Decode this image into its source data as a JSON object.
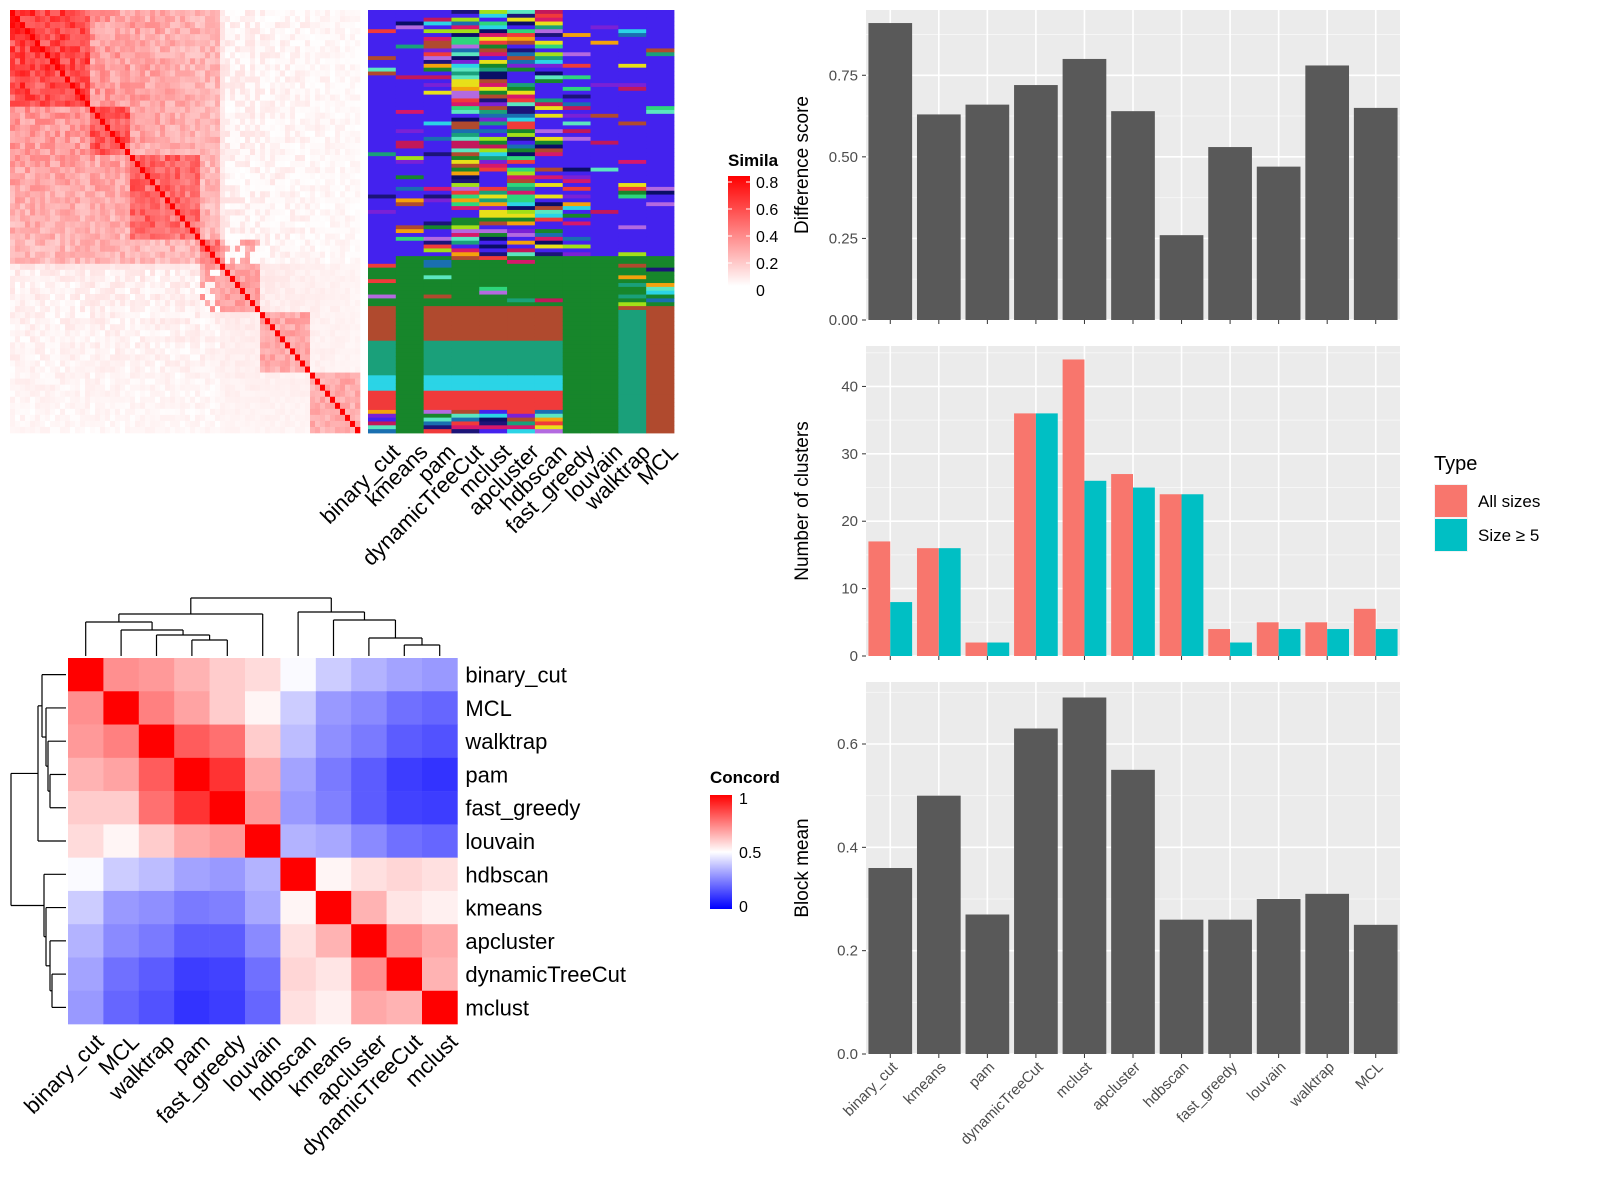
{
  "chart_data": [
    {
      "type": "heatmap",
      "id": "similarity-heatmap",
      "description_note": "",
      "legend": {
        "title": "Simila",
        "ticks": [
          "0.8",
          "0.6",
          "0.4",
          "0.2",
          "0"
        ],
        "colors": [
          "#ffffff",
          "#ff0000"
        ]
      },
      "value_range": [
        0,
        0.8
      ]
    },
    {
      "type": "heatmap",
      "id": "cluster-label-matrix",
      "columns": [
        "binary_cut",
        "kmeans",
        "pam",
        "dynamicTreeCut",
        "mclust",
        "apcluster",
        "hdbscan",
        "fast_greedy",
        "louvain",
        "walktrap",
        "MCL"
      ]
    },
    {
      "type": "heatmap",
      "id": "concordance-heatmap",
      "rows": [
        "binary_cut",
        "MCL",
        "walktrap",
        "pam",
        "fast_greedy",
        "louvain",
        "hdbscan",
        "kmeans",
        "apcluster",
        "dynamicTreeCut",
        "mclust"
      ],
      "columns": [
        "binary_cut",
        "MCL",
        "walktrap",
        "pam",
        "fast_greedy",
        "louvain",
        "hdbscan",
        "kmeans",
        "apcluster",
        "dynamicTreeCut",
        "mclust"
      ],
      "values": [
        [
          1.0,
          0.72,
          0.7,
          0.65,
          0.6,
          0.57,
          0.49,
          0.4,
          0.35,
          0.32,
          0.3
        ],
        [
          0.72,
          1.0,
          0.75,
          0.68,
          0.6,
          0.52,
          0.4,
          0.3,
          0.27,
          0.22,
          0.2
        ],
        [
          0.7,
          0.75,
          1.0,
          0.82,
          0.78,
          0.6,
          0.37,
          0.28,
          0.24,
          0.18,
          0.16
        ],
        [
          0.65,
          0.68,
          0.82,
          1.0,
          0.9,
          0.67,
          0.32,
          0.24,
          0.18,
          0.12,
          0.1
        ],
        [
          0.6,
          0.6,
          0.78,
          0.9,
          1.0,
          0.7,
          0.3,
          0.25,
          0.18,
          0.13,
          0.12
        ],
        [
          0.57,
          0.52,
          0.6,
          0.67,
          0.7,
          1.0,
          0.35,
          0.33,
          0.27,
          0.22,
          0.2
        ],
        [
          0.49,
          0.4,
          0.37,
          0.32,
          0.3,
          0.35,
          1.0,
          0.52,
          0.56,
          0.58,
          0.56
        ],
        [
          0.4,
          0.3,
          0.28,
          0.24,
          0.25,
          0.33,
          0.52,
          1.0,
          0.65,
          0.55,
          0.53
        ],
        [
          0.35,
          0.27,
          0.24,
          0.18,
          0.18,
          0.27,
          0.56,
          0.65,
          1.0,
          0.72,
          0.67
        ],
        [
          0.32,
          0.22,
          0.18,
          0.12,
          0.13,
          0.22,
          0.58,
          0.55,
          0.72,
          1.0,
          0.65
        ],
        [
          0.3,
          0.2,
          0.16,
          0.1,
          0.12,
          0.2,
          0.56,
          0.53,
          0.67,
          0.65,
          1.0
        ]
      ],
      "legend": {
        "title": "Concord",
        "ticks": [
          "1",
          "0.5",
          "0"
        ],
        "colors": [
          "#0000ff",
          "#ffffff",
          "#ff0000"
        ]
      },
      "dendrogram": "top and left"
    },
    {
      "type": "bar",
      "id": "difference-score",
      "categories": [
        "binary_cut",
        "kmeans",
        "pam",
        "dynamicTreeCut",
        "mclust",
        "apcluster",
        "hdbscan",
        "fast_greedy",
        "louvain",
        "walktrap",
        "MCL"
      ],
      "values": [
        0.91,
        0.63,
        0.66,
        0.72,
        0.8,
        0.64,
        0.26,
        0.53,
        0.47,
        0.78,
        0.65
      ],
      "ylabel": "Difference score",
      "ylim": [
        0,
        0.95
      ],
      "yticks": [
        "0.00",
        "0.25",
        "0.50",
        "0.75"
      ],
      "grid": true,
      "bar_color": "#595959"
    },
    {
      "type": "bar",
      "id": "number-of-clusters",
      "categories": [
        "binary_cut",
        "kmeans",
        "pam",
        "dynamicTreeCut",
        "mclust",
        "apcluster",
        "hdbscan",
        "fast_greedy",
        "louvain",
        "walktrap",
        "MCL"
      ],
      "series": [
        {
          "name": "All sizes",
          "color": "#F8766D",
          "values": [
            17,
            16,
            2,
            36,
            44,
            27,
            24,
            4,
            5,
            5,
            7
          ]
        },
        {
          "name": "Size ≥ 5",
          "color": "#00BFC4",
          "values": [
            8,
            16,
            2,
            36,
            26,
            25,
            24,
            2,
            4,
            4,
            4
          ]
        }
      ],
      "ylabel": "Number of clusters",
      "ylim": [
        0,
        46
      ],
      "yticks": [
        "0",
        "10",
        "20",
        "30",
        "40"
      ],
      "legend": {
        "title": "Type",
        "position": "right"
      },
      "grid": true
    },
    {
      "type": "bar",
      "id": "block-mean",
      "categories": [
        "binary_cut",
        "kmeans",
        "pam",
        "dynamicTreeCut",
        "mclust",
        "apcluster",
        "hdbscan",
        "fast_greedy",
        "louvain",
        "walktrap",
        "MCL"
      ],
      "values": [
        0.36,
        0.5,
        0.27,
        0.63,
        0.69,
        0.55,
        0.26,
        0.26,
        0.3,
        0.31,
        0.25
      ],
      "ylabel": "Block mean",
      "ylim": [
        0,
        0.72
      ],
      "yticks": [
        "0.0",
        "0.2",
        "0.4",
        "0.6"
      ],
      "grid": true,
      "bar_color": "#595959"
    }
  ]
}
